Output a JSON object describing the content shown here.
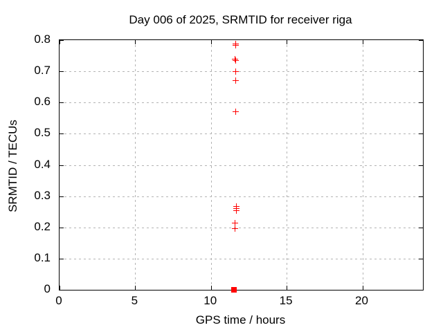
{
  "chart_data": {
    "type": "scatter",
    "title": "Day 006 of 2025, SRMTID for receiver riga",
    "xlabel": "GPS time / hours",
    "ylabel": "SRMTID / TECUs",
    "grid": true,
    "legend": "none",
    "marker": "plus",
    "marker_color": "#ff0000",
    "axes": {
      "x": {
        "label": "GPS time / hours",
        "min": 0,
        "max": 24,
        "tick_values": [
          0,
          5,
          10,
          15,
          20
        ],
        "tick_labels": [
          "0",
          "5",
          "10",
          "15",
          "20"
        ]
      },
      "y": {
        "label": "SRMTID / TECUs",
        "min": 0,
        "max": 0.8,
        "tick_values": [
          0,
          0.1,
          0.2,
          0.3,
          0.4,
          0.5,
          0.6,
          0.7,
          0.8
        ],
        "tick_labels": [
          "0",
          "0.1",
          "0.2",
          "0.3",
          "0.4",
          "0.5",
          "0.6",
          "0.7",
          "0.8"
        ]
      }
    },
    "series": [
      {
        "name": "SRMTID",
        "points": [
          [
            11.63,
            0.788
          ],
          [
            11.63,
            0.783
          ],
          [
            11.6,
            0.738
          ],
          [
            11.64,
            0.734
          ],
          [
            11.63,
            0.699
          ],
          [
            11.63,
            0.671
          ],
          [
            11.63,
            0.571
          ],
          [
            11.69,
            0.268
          ],
          [
            11.69,
            0.26
          ],
          [
            11.69,
            0.253
          ],
          [
            11.61,
            0.213
          ],
          [
            11.61,
            0.197
          ]
        ]
      }
    ],
    "zero_cluster": {
      "x": 11.52,
      "y": 0.0,
      "rendered_as": "solid square of many overlapping markers at zero"
    }
  }
}
